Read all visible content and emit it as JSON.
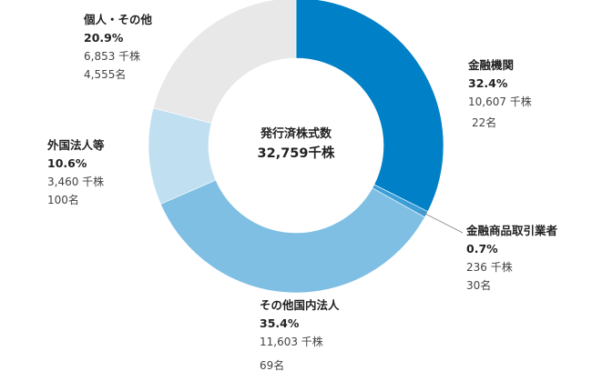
{
  "chart_data": {
    "type": "pie",
    "subtype": "donut",
    "center": {
      "line1": "発行済株式数",
      "line2": "32,759千株"
    },
    "total_shares_thousand": 32759,
    "slices": [
      {
        "name": "金融機関",
        "percent": 32.4,
        "percent_label": "32.4%",
        "shares_label": "10,607 千株",
        "holders_label": "22名",
        "shares_thousand": 10607,
        "holders": 22,
        "color": "#0080C6"
      },
      {
        "name": "金融商品取引業者",
        "percent": 0.7,
        "percent_label": "0.7%",
        "shares_label": "236 千株",
        "holders_label": "30名",
        "shares_thousand": 236,
        "holders": 30,
        "color": "#3D9FD8"
      },
      {
        "name": "その他国内法人",
        "percent": 35.4,
        "percent_label": "35.4%",
        "shares_label": "11,603 千株",
        "holders_label": "69名",
        "shares_thousand": 11603,
        "holders": 69,
        "color": "#7FBFE3"
      },
      {
        "name": "外国法人等",
        "percent": 10.6,
        "percent_label": "10.6%",
        "shares_label": "3,460 千株",
        "holders_label": "100名",
        "shares_thousand": 3460,
        "holders": 100,
        "color": "#C0E0F2"
      },
      {
        "name": "個人・その他",
        "percent": 20.9,
        "percent_label": "20.9%",
        "shares_label": "6,853 千株",
        "holders_label": "4,555名",
        "shares_thousand": 6853,
        "holders": 4555,
        "color": "#E8E8E8"
      }
    ]
  }
}
